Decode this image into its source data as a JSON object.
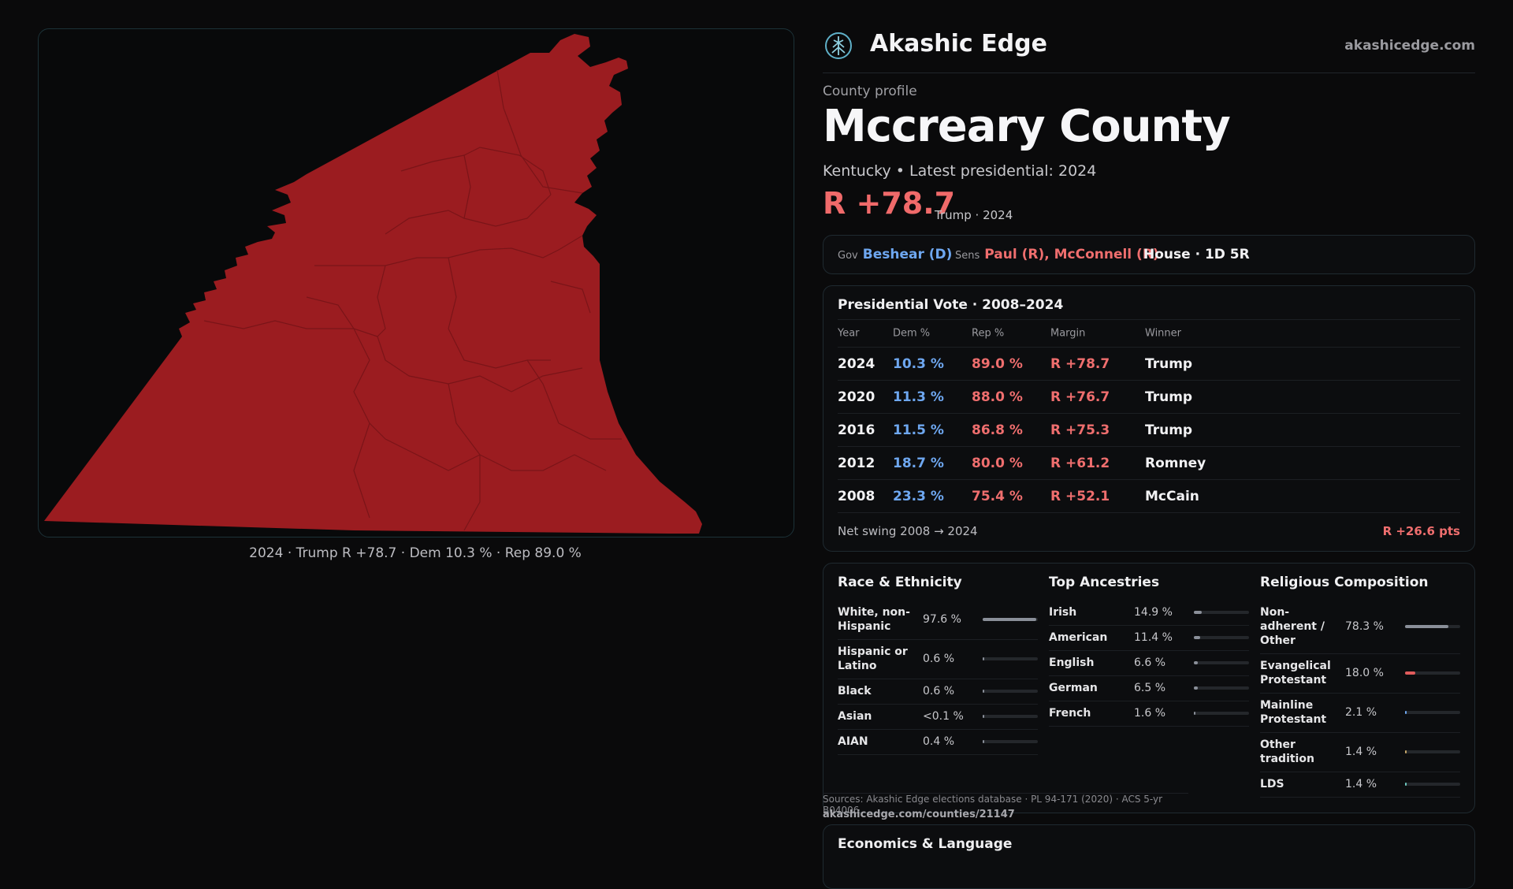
{
  "map": {
    "caption": "2024 · Trump R +78.7 · Dem 10.3 % · Rep 89.0 %",
    "fill_color": "#9b1c20"
  },
  "brand": {
    "name": "Akashic Edge",
    "site": "akashicedge.com",
    "logo_icon": "tree-globe-icon"
  },
  "profile": {
    "kicker": "County profile",
    "title": "Mccreary County",
    "subtitle": "Kentucky • Latest presidential: 2024",
    "margin": "R +78.7",
    "margin_note": "Trump · 2024"
  },
  "officials": {
    "gov_label": "Gov",
    "gov_value": "Beshear (D)",
    "sens_label": "Sens",
    "sens_value": "Paul (R), McConnell (R)",
    "house": "House · 1D 5R"
  },
  "presidential": {
    "title": "Presidential Vote · 2008–2024",
    "headers": [
      "Year",
      "Dem %",
      "Rep %",
      "Margin",
      "Winner"
    ],
    "rows": [
      {
        "year": "2024",
        "dem": "10.3 %",
        "rep": "89.0 %",
        "margin": "R +78.7",
        "winner": "Trump"
      },
      {
        "year": "2020",
        "dem": "11.3 %",
        "rep": "88.0 %",
        "margin": "R +76.7",
        "winner": "Trump"
      },
      {
        "year": "2016",
        "dem": "11.5 %",
        "rep": "86.8 %",
        "margin": "R +75.3",
        "winner": "Trump"
      },
      {
        "year": "2012",
        "dem": "18.7 %",
        "rep": "80.0 %",
        "margin": "R +61.2",
        "winner": "Romney"
      },
      {
        "year": "2008",
        "dem": "23.3 %",
        "rep": "75.4 %",
        "margin": "R +52.1",
        "winner": "McCain"
      }
    ],
    "net_label": "Net swing 2008 → 2024",
    "net_value": "R +26.6 pts"
  },
  "race": {
    "title": "Race & Ethnicity",
    "rows": [
      {
        "label": "White, non-Hispanic",
        "value": "97.6 %",
        "pct": 97.6
      },
      {
        "label": "Hispanic or Latino",
        "value": "0.6 %",
        "pct": 0.6
      },
      {
        "label": "Black",
        "value": "0.6 %",
        "pct": 0.6
      },
      {
        "label": "Asian",
        "value": "<0.1 %",
        "pct": 0.05
      },
      {
        "label": "AIAN",
        "value": "0.4 %",
        "pct": 0.4
      }
    ]
  },
  "ancestry": {
    "title": "Top Ancestries",
    "rows": [
      {
        "label": "Irish",
        "value": "14.9 %",
        "pct": 14.9
      },
      {
        "label": "American",
        "value": "11.4 %",
        "pct": 11.4
      },
      {
        "label": "English",
        "value": "6.6 %",
        "pct": 6.6
      },
      {
        "label": "German",
        "value": "6.5 %",
        "pct": 6.5
      },
      {
        "label": "French",
        "value": "1.6 %",
        "pct": 1.6
      }
    ]
  },
  "religion": {
    "title": "Religious Composition",
    "rows": [
      {
        "label": "Non-adherent / Other",
        "value": "78.3 %",
        "pct": 78.3,
        "color": "#8a8f99"
      },
      {
        "label": "Evangelical Protestant",
        "value": "18.0 %",
        "pct": 18.0,
        "color": "#e15c5c"
      },
      {
        "label": "Mainline Protestant",
        "value": "2.1 %",
        "pct": 2.1,
        "color": "#6ea7f0"
      },
      {
        "label": "Other tradition",
        "value": "1.4 %",
        "pct": 1.4,
        "color": "#c8a86a"
      },
      {
        "label": "LDS",
        "value": "1.4 %",
        "pct": 1.4,
        "color": "#6ec9c0"
      }
    ]
  },
  "sources": {
    "text": "Sources: Akashic Edge elections database · PL 94-171 (2020) · ACS 5-yr B04006",
    "url": "akashicedge.com/counties/21147"
  },
  "economics": {
    "title": "Economics & Language"
  }
}
